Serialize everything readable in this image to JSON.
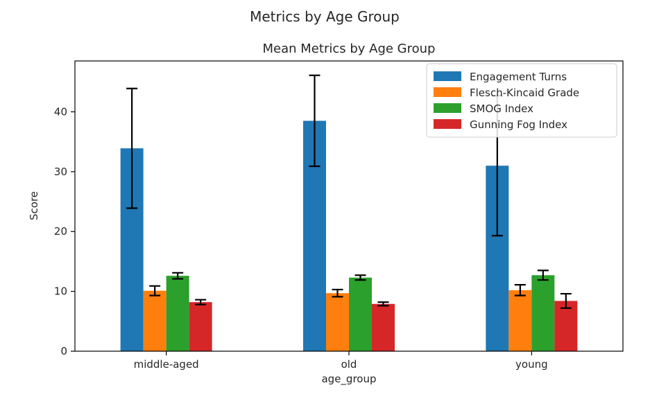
{
  "chart_data": {
    "type": "bar",
    "suptitle": "Metrics by Age Group",
    "title": "Mean Metrics by Age Group",
    "xlabel": "age_group",
    "ylabel": "Score",
    "categories": [
      "middle-aged",
      "old",
      "young"
    ],
    "ylim": [
      0,
      48.5
    ],
    "yticks": [
      0,
      10,
      20,
      30,
      40
    ],
    "grid": false,
    "legend_position": "top-right",
    "series": [
      {
        "name": "Engagement Turns",
        "color": "#1f77b4",
        "values": [
          33.9,
          38.5,
          31.0
        ],
        "error": [
          10.0,
          7.6,
          11.7
        ]
      },
      {
        "name": "Flesch-Kincaid Grade",
        "color": "#ff7f0e",
        "values": [
          10.1,
          9.7,
          10.2
        ],
        "error": [
          0.8,
          0.6,
          0.9
        ]
      },
      {
        "name": "SMOG Index",
        "color": "#2ca02c",
        "values": [
          12.6,
          12.3,
          12.7
        ],
        "error": [
          0.5,
          0.4,
          0.8
        ]
      },
      {
        "name": "Gunning Fog Index",
        "color": "#d62728",
        "values": [
          8.2,
          7.9,
          8.4
        ],
        "error": [
          0.4,
          0.3,
          1.2
        ]
      }
    ]
  }
}
